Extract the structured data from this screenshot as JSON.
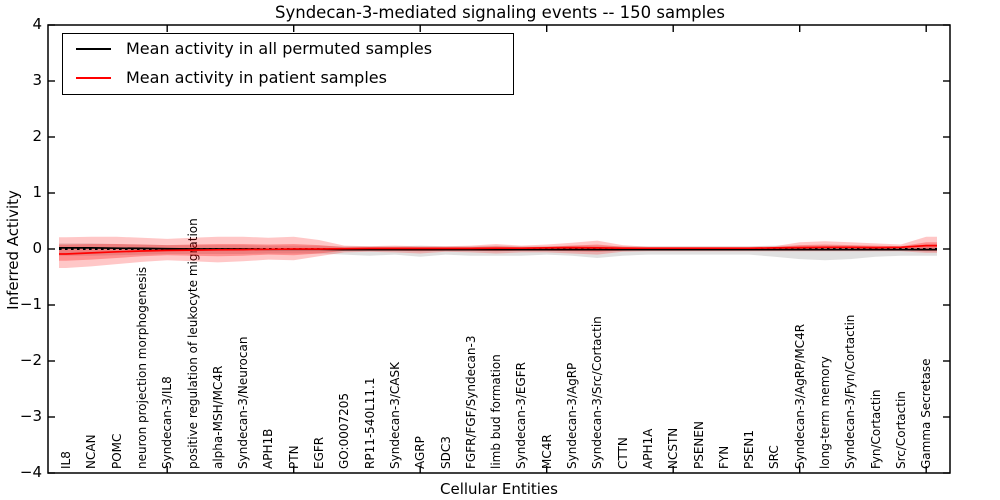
{
  "chart_data": {
    "type": "line",
    "title": "Syndecan-3-mediated signaling events -- 150 samples",
    "xlabel": "Cellular Entities",
    "ylabel": "Inferred Activity",
    "ylim": [
      -4,
      4
    ],
    "yticks": [
      4,
      3,
      2,
      1,
      0,
      -1,
      -2,
      -3,
      -4
    ],
    "grid": false,
    "legend_position": "upper left",
    "legend": [
      {
        "label": "Mean activity in all permuted samples",
        "color": "#000000"
      },
      {
        "label": "Mean activity in patient samples",
        "color": "#ff0000"
      }
    ],
    "categories": [
      "IL8",
      "NCAN",
      "POMC",
      "neuron projection morphogenesis",
      "Syndecan-3/IL8",
      "positive regulation of leukocyte migration",
      "alpha-MSH/MC4R",
      "Syndecan-3/Neurocan",
      "APH1B",
      "PTN",
      "EGFR",
      "GO:0007205",
      "RP11-540L11.1",
      "Syndecan-3/CASK",
      "AGRP",
      "SDC3",
      "FGFR/FGF/Syndecan-3",
      "limb bud formation",
      "Syndecan-3/EGFR",
      "MC4R",
      "Syndecan-3/AgRP",
      "Syndecan-3/Src/Cortactin",
      "CTTN",
      "APH1A",
      "NCSTN",
      "PSENEN",
      "FYN",
      "PSEN1",
      "SRC",
      "Syndecan-3/AgRP/MC4R",
      "long-term memory",
      "Syndecan-3/Fyn/Cortactin",
      "Fyn/Cortactin",
      "Src/Cortactin",
      "Gamma Secretase"
    ],
    "series": [
      {
        "name": "Permuted samples range",
        "type": "band",
        "color": "#000000",
        "opacity": 0.12,
        "upper": [
          0.1,
          0.1,
          0.09,
          0.08,
          0.07,
          0.07,
          0.07,
          0.07,
          0.06,
          0.06,
          0.06,
          0.05,
          0.05,
          0.05,
          0.06,
          0.05,
          0.05,
          0.06,
          0.05,
          0.05,
          0.06,
          0.06,
          0.05,
          0.05,
          0.05,
          0.05,
          0.05,
          0.05,
          0.06,
          0.06,
          0.06,
          0.06,
          0.05,
          0.05,
          0.08
        ],
        "lower": [
          -0.12,
          -0.12,
          -0.11,
          -0.1,
          -0.09,
          -0.09,
          -0.09,
          -0.09,
          -0.08,
          -0.08,
          -0.08,
          -0.1,
          -0.12,
          -0.1,
          -0.14,
          -0.1,
          -0.12,
          -0.12,
          -0.12,
          -0.1,
          -0.12,
          -0.16,
          -0.12,
          -0.1,
          -0.1,
          -0.1,
          -0.1,
          -0.1,
          -0.14,
          -0.18,
          -0.2,
          -0.18,
          -0.14,
          -0.12,
          -0.12
        ]
      },
      {
        "name": "Patient samples outer range",
        "type": "band",
        "color": "#ff0000",
        "opacity": 0.22,
        "upper": [
          0.21,
          0.22,
          0.22,
          0.2,
          0.18,
          0.2,
          0.22,
          0.22,
          0.2,
          0.22,
          0.16,
          0.06,
          0.05,
          0.06,
          0.05,
          0.05,
          0.06,
          0.09,
          0.06,
          0.08,
          0.11,
          0.15,
          0.07,
          0.04,
          0.04,
          0.04,
          0.04,
          0.04,
          0.05,
          0.12,
          0.14,
          0.12,
          0.1,
          0.08,
          0.22
        ],
        "lower": [
          -0.34,
          -0.31,
          -0.27,
          -0.23,
          -0.2,
          -0.22,
          -0.24,
          -0.22,
          -0.19,
          -0.2,
          -0.13,
          -0.06,
          -0.05,
          -0.06,
          -0.08,
          -0.05,
          -0.06,
          -0.08,
          -0.06,
          -0.06,
          -0.08,
          -0.1,
          -0.05,
          -0.04,
          -0.04,
          -0.04,
          -0.04,
          -0.04,
          -0.04,
          -0.04,
          -0.04,
          -0.04,
          -0.04,
          -0.04,
          -0.07
        ]
      },
      {
        "name": "Patient samples inner range",
        "type": "band",
        "color": "#ff0000",
        "opacity": 0.28,
        "upper": [
          0.08,
          0.09,
          0.09,
          0.08,
          0.07,
          0.08,
          0.09,
          0.09,
          0.08,
          0.09,
          0.07,
          0.03,
          0.03,
          0.03,
          0.03,
          0.03,
          0.03,
          0.05,
          0.03,
          0.04,
          0.06,
          0.08,
          0.04,
          0.02,
          0.02,
          0.02,
          0.02,
          0.02,
          0.03,
          0.07,
          0.08,
          0.07,
          0.06,
          0.05,
          0.12
        ],
        "lower": [
          -0.21,
          -0.19,
          -0.16,
          -0.13,
          -0.11,
          -0.12,
          -0.13,
          -0.12,
          -0.1,
          -0.11,
          -0.08,
          -0.03,
          -0.03,
          -0.03,
          -0.04,
          -0.03,
          -0.03,
          -0.04,
          -0.03,
          -0.03,
          -0.04,
          -0.05,
          -0.03,
          -0.02,
          -0.02,
          -0.02,
          -0.02,
          -0.02,
          -0.02,
          -0.02,
          -0.02,
          -0.02,
          -0.02,
          -0.02,
          -0.04
        ]
      },
      {
        "name": "Zero reference",
        "type": "dotted-line",
        "color": "#000000",
        "value": 0
      },
      {
        "name": "Mean activity in all permuted samples",
        "type": "line",
        "color": "#000000",
        "values": [
          0.02,
          0.02,
          0.015,
          0.01,
          0.005,
          0,
          0,
          0,
          -0.005,
          -0.005,
          -0.005,
          -0.01,
          -0.01,
          -0.01,
          -0.01,
          -0.01,
          -0.01,
          -0.01,
          -0.01,
          -0.01,
          -0.01,
          -0.01,
          -0.01,
          -0.01,
          -0.01,
          -0.01,
          -0.01,
          -0.01,
          -0.01,
          -0.01,
          -0.01,
          -0.01,
          -0.01,
          -0.01,
          -0.01
        ]
      },
      {
        "name": "Mean activity in patient samples",
        "type": "line",
        "color": "#ff0000",
        "values": [
          -0.09,
          -0.07,
          -0.05,
          -0.035,
          -0.025,
          -0.02,
          -0.015,
          -0.01,
          -0.005,
          0,
          0,
          0.005,
          0.01,
          0.01,
          0.01,
          0.01,
          0.01,
          0.015,
          0.015,
          0.02,
          0.025,
          0.02,
          0.015,
          0.015,
          0.015,
          0.015,
          0.015,
          0.015,
          0.02,
          0.025,
          0.03,
          0.03,
          0.025,
          0.03,
          0.06
        ]
      }
    ]
  }
}
